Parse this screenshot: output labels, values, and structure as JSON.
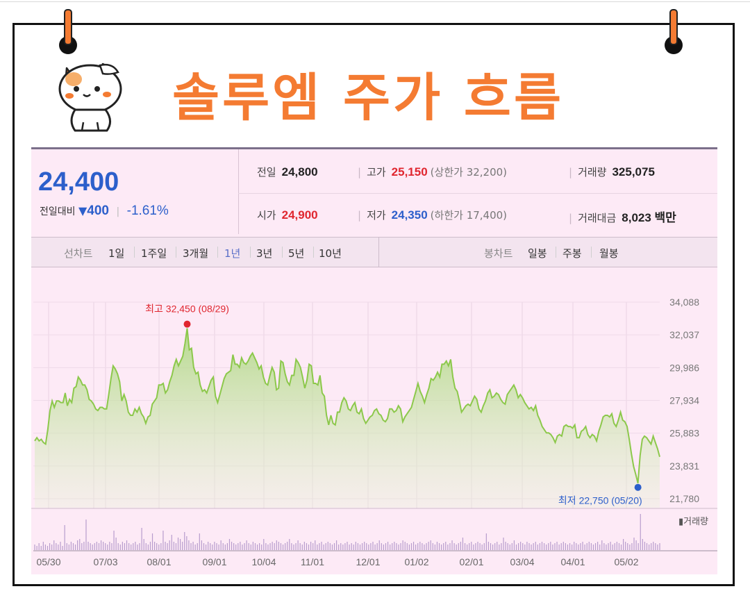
{
  "title": "솔루엠 주가 흐름",
  "quote": {
    "price": "24,400",
    "change_label": "전일대비",
    "change_arrow": "▼",
    "change_value": "400",
    "change_pct": "-1.61%"
  },
  "stats": {
    "prev_label": "전일",
    "prev_value": "24,800",
    "high_label": "고가",
    "high_value": "25,150",
    "upper_limit": "(상한가 32,200)",
    "volume_label": "거래량",
    "volume_value": "325,075",
    "open_label": "시가",
    "open_value": "24,900",
    "low_label": "저가",
    "low_value": "24,350",
    "lower_limit": "(하한가 17,400)",
    "amount_label": "거래대금",
    "amount_value": "8,023 백만"
  },
  "tabs": {
    "line_label": "선차트",
    "line": [
      "1일",
      "1주일",
      "3개월",
      "1년",
      "3년",
      "5년",
      "10년"
    ],
    "line_selected": "1년",
    "candle_label": "봉차트",
    "candle": [
      "일봉",
      "주봉",
      "월봉"
    ]
  },
  "colors": {
    "accent": "#f47b32",
    "up": "#e0262f",
    "down": "#2c5fcb",
    "line": "#8cc84b",
    "panel": "#fdeaf6"
  },
  "chart_data": {
    "type": "area",
    "y_ticks": [
      "34,088",
      "32,037",
      "29,986",
      "27,934",
      "25,883",
      "23,831",
      "21,780"
    ],
    "ylim": [
      21780,
      34088
    ],
    "x_labels": [
      "05/30",
      "07/03",
      "08/01",
      "09/01",
      "10/04",
      "11/01",
      "12/01",
      "01/02",
      "02/01",
      "03/04",
      "04/01",
      "05/02"
    ],
    "max_annotation": "최고 32,450 (08/29)",
    "min_annotation": "최저 22,750 (05/20)",
    "max_value": 32450,
    "min_value": 22750,
    "volume_label": "거래량",
    "series": [
      {
        "values": [
          25400,
          25600,
          25400,
          25500,
          25300,
          25200,
          26100,
          27300,
          27900,
          27500,
          27900,
          27900,
          27800,
          27800,
          28400,
          27600,
          28000,
          27800,
          28700,
          28800,
          29400,
          29200,
          28900,
          28900,
          28600,
          28000,
          27900,
          27700,
          27400,
          27300,
          27500,
          27500,
          27400,
          27400,
          28300,
          29300,
          30100,
          29900,
          29600,
          29100,
          27900,
          28300,
          27900,
          27200,
          27000,
          27000,
          27400,
          27200,
          27500,
          27100,
          26900,
          26500,
          26900,
          27000,
          27700,
          27900,
          28100,
          28900,
          28900,
          29000,
          28400,
          28600,
          29100,
          29500,
          30100,
          30500,
          30100,
          30400,
          30700,
          31500,
          32450,
          31100,
          31200,
          30000,
          29600,
          29700,
          28900,
          28500,
          28600,
          28400,
          28800,
          29200,
          29400,
          28200,
          27800,
          28300,
          28800,
          29300,
          29600,
          29700,
          29800,
          30800,
          30200,
          30200,
          30000,
          30600,
          30300,
          30200,
          30400,
          30700,
          30900,
          30600,
          30300,
          29900,
          30100,
          29400,
          29000,
          28900,
          29500,
          30000,
          29700,
          28600,
          28700,
          30400,
          30300,
          29600,
          29100,
          28900,
          29500,
          29500,
          30500,
          30300,
          30000,
          29400,
          28700,
          29200,
          30200,
          30100,
          29000,
          29000,
          28900,
          29500,
          28400,
          28200,
          27000,
          26400,
          27000,
          26500,
          26400,
          27200,
          27200,
          27800,
          28100,
          27900,
          27400,
          27300,
          27600,
          27800,
          27200,
          27100,
          27400,
          26800,
          26500,
          26700,
          26900,
          27000,
          27300,
          27400,
          27100,
          27000,
          26700,
          26600,
          26800,
          27400,
          27400,
          27200,
          27300,
          27600,
          27400,
          26600,
          26900,
          27100,
          27300,
          27500,
          28000,
          28500,
          29000,
          28500,
          28200,
          27800,
          28300,
          28700,
          29300,
          29200,
          29400,
          29700,
          29400,
          30200,
          30200,
          30400,
          30100,
          30500,
          29400,
          28700,
          28500,
          27900,
          27200,
          27400,
          27600,
          27700,
          27600,
          27900,
          28200,
          28000,
          27400,
          27200,
          27600,
          27900,
          28400,
          28600,
          28100,
          28200,
          28400,
          28300,
          28000,
          27800,
          27700,
          28300,
          28500,
          28700,
          28900,
          28600,
          28100,
          28300,
          28100,
          27800,
          27600,
          27400,
          27500,
          27300,
          27600,
          27000,
          26700,
          26300,
          26100,
          25900,
          25900,
          25800,
          25600,
          25300,
          25700,
          25800,
          25700,
          26300,
          26400,
          26300,
          26300,
          26200,
          26400,
          25600,
          25600,
          26000,
          26100,
          26300,
          25800,
          25600,
          25800,
          25700,
          25400,
          26000,
          26400,
          26900,
          27000,
          27000,
          26900,
          27100,
          26500,
          26300,
          26700,
          27200,
          26700,
          26600,
          26300,
          25500,
          24600,
          23800,
          23300,
          22750,
          24500,
          25500,
          25700,
          25600,
          25400,
          25200,
          25700,
          25300,
          24900,
          24400
        ]
      }
    ],
    "volume": [
      4,
      3,
      5,
      3,
      6,
      4,
      3,
      5,
      4,
      7,
      5,
      4,
      6,
      3,
      18,
      5,
      4,
      6,
      5,
      4,
      7,
      8,
      5,
      6,
      22,
      6,
      5,
      4,
      5,
      6,
      5,
      7,
      6,
      5,
      4,
      6,
      5,
      14,
      9,
      5,
      4,
      6,
      5,
      7,
      5,
      4,
      5,
      6,
      4,
      5,
      16,
      8,
      5,
      4,
      6,
      12,
      6,
      5,
      4,
      5,
      14,
      6,
      5,
      7,
      11,
      6,
      5,
      9,
      8,
      6,
      13,
      10,
      7,
      5,
      6,
      4,
      5,
      12,
      7,
      5,
      4,
      6,
      5,
      4,
      6,
      5,
      4,
      7,
      5,
      4,
      5,
      8,
      6,
      5,
      4,
      5,
      6,
      4,
      5,
      7,
      5,
      4,
      6,
      5,
      4,
      5,
      4,
      8,
      5,
      4,
      5,
      6,
      5,
      7,
      6,
      5,
      4,
      5,
      6,
      8,
      5,
      4,
      5,
      7,
      5,
      4,
      6,
      5,
      4,
      6,
      5,
      7,
      4,
      5,
      6,
      4,
      5,
      6,
      5,
      4,
      5,
      7,
      4,
      5,
      4,
      5,
      6,
      4,
      5,
      4,
      6,
      5,
      4,
      5,
      6,
      5,
      4,
      5,
      6,
      4,
      5,
      7,
      5,
      4,
      5,
      6,
      4,
      5,
      6,
      5,
      4,
      5,
      7,
      6,
      5,
      4,
      5,
      6,
      4,
      5,
      6,
      5,
      4,
      5,
      6,
      7,
      5,
      4,
      6,
      5,
      4,
      5,
      6,
      4,
      5,
      7,
      5,
      4,
      5,
      6,
      9,
      5,
      4,
      5,
      6,
      4,
      5,
      6,
      5,
      4,
      5,
      12,
      6,
      5,
      4,
      5,
      6,
      4,
      5,
      9,
      6,
      5,
      4,
      5,
      7,
      4,
      5,
      6,
      5,
      4,
      6,
      5,
      4,
      5,
      6,
      4,
      5,
      6,
      5,
      4,
      5,
      6,
      4,
      5,
      6,
      4,
      5,
      6,
      5,
      4,
      5,
      4,
      6,
      5,
      4,
      5,
      6,
      4,
      5,
      6,
      5,
      4,
      5,
      6,
      4,
      7,
      5,
      4,
      5,
      6,
      4,
      5,
      6,
      5,
      4,
      8,
      6,
      5,
      4,
      5,
      9,
      7,
      5,
      26,
      8,
      6,
      5,
      4,
      5,
      6,
      5,
      4,
      5
    ]
  }
}
